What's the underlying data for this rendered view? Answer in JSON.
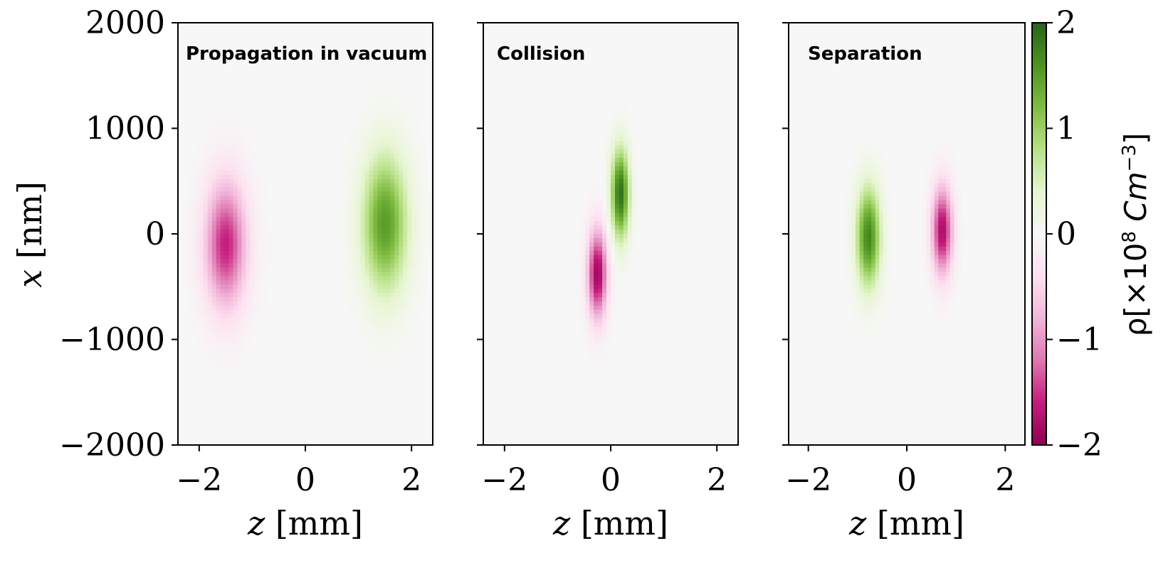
{
  "chart_data": {
    "type": "heatmap",
    "colormap": "PiYG",
    "colors": {
      "negative": "#8e0152",
      "zero": "#f7f7f7",
      "positive": "#276419"
    },
    "y_axis": {
      "label_var": "x",
      "label_unit": "[nm]",
      "range": [
        -2000,
        2000
      ],
      "ticks": [
        2000,
        1000,
        0,
        -1000,
        -2000
      ],
      "tick_labels": [
        "2000",
        "1000",
        "0",
        "−1000",
        "−2000"
      ]
    },
    "x_axis": {
      "label_var": "z",
      "label_unit": "[mm]",
      "range": [
        -2.4,
        2.4
      ],
      "ticks": [
        -2,
        0,
        2
      ],
      "tick_labels": [
        "−2",
        "0",
        "2"
      ]
    },
    "colorbar": {
      "label_prefix": "ρ[×10",
      "label_exp": "8",
      "label_mid": " Cm",
      "label_exp2": "−3",
      "label_suffix": "]",
      "range": [
        -2,
        2
      ],
      "ticks": [
        2,
        1,
        0,
        -1,
        -2
      ],
      "tick_labels": [
        "2",
        "1",
        "0",
        "−1",
        "−2"
      ]
    },
    "panels": [
      {
        "title": "Propagation in vacuum",
        "blobs": [
          {
            "z": -1.5,
            "x": -100,
            "sz": 0.28,
            "sx": 430,
            "amp": -1.6
          },
          {
            "z": 1.5,
            "x": 100,
            "sz": 0.3,
            "sx": 460,
            "amp": 1.5
          }
        ]
      },
      {
        "title": "Collision",
        "blobs": [
          {
            "z": -0.25,
            "x": -380,
            "sz": 0.13,
            "sx": 300,
            "amp": -1.9
          },
          {
            "z": 0.18,
            "x": 380,
            "sz": 0.12,
            "sx": 300,
            "amp": 1.9
          }
        ]
      },
      {
        "title": "Separation",
        "blobs": [
          {
            "z": -0.78,
            "x": -30,
            "sz": 0.17,
            "sx": 330,
            "amp": 1.7
          },
          {
            "z": 0.72,
            "x": 30,
            "sz": 0.15,
            "sx": 300,
            "amp": -1.8
          }
        ]
      }
    ]
  }
}
